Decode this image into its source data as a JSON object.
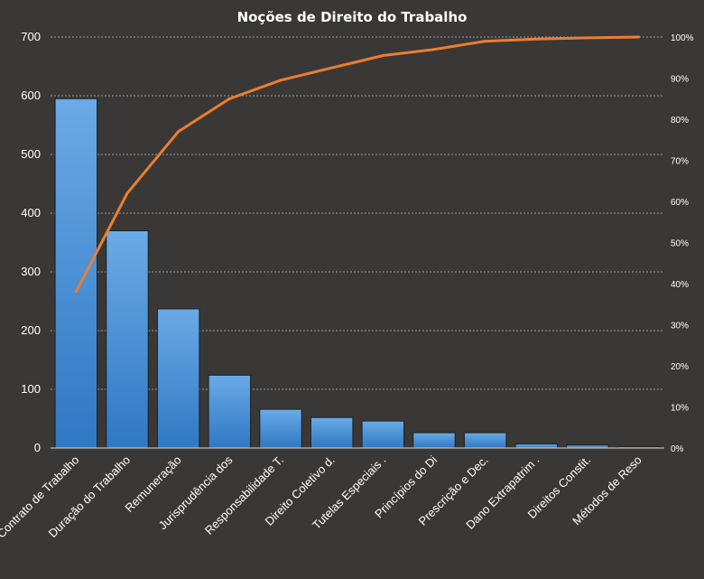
{
  "chart_data": {
    "type": "bar",
    "title": "Noções de Direito  do Trabalho",
    "categories": [
      "Contrato de Trabalho",
      "Duração do Trabalho",
      "Remuneração",
      "Jurisprudência dos",
      "Responsabilidade T.",
      "Direito Coletivo d.",
      "Tutelas Especiais .",
      "Princípios do Di",
      "Prescrição e Dec.",
      "Dano Extrapatrim .",
      "Direitos Constit.",
      "Métodos de Reso"
    ],
    "series": [
      {
        "type": "bar",
        "axis": "left",
        "color": "#4a90d6",
        "values": [
          595,
          370,
          237,
          124,
          66,
          52,
          46,
          26,
          26,
          7,
          5,
          2
        ]
      },
      {
        "type": "line",
        "axis": "right",
        "color": "#ed7d31",
        "values": [
          38,
          62,
          77,
          85,
          89.5,
          92.5,
          95.5,
          97,
          99,
          99.5,
          99.8,
          100
        ]
      }
    ],
    "y_ticks": [
      "0",
      "100",
      "200",
      "300",
      "400",
      "500",
      "600",
      "700"
    ],
    "ylim": [
      0,
      700
    ],
    "y2_ticks": [
      "0%",
      "10%",
      "20%",
      "30%",
      "40%",
      "50%",
      "60%",
      "70%",
      "80%",
      "90%",
      "100%"
    ],
    "y2lim": [
      0,
      100
    ],
    "grid": true,
    "legend": "none",
    "colors": {
      "background": "#3a3836",
      "grid": "#9a9a9a",
      "text": "#ffffff"
    }
  }
}
